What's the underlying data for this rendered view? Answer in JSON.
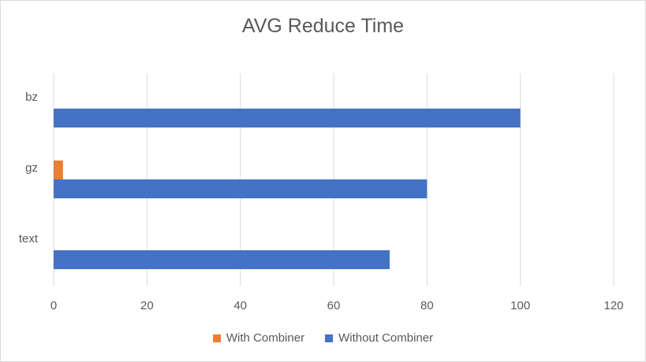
{
  "chart_data": {
    "type": "bar",
    "orientation": "horizontal",
    "title": "AVG Reduce Time",
    "categories": [
      "bz",
      "gz",
      "text"
    ],
    "series": [
      {
        "name": "With Combiner",
        "values": [
          0,
          2,
          0
        ],
        "color": "#ED7D31"
      },
      {
        "name": "Without Combiner",
        "values": [
          100,
          80,
          72
        ],
        "color": "#4472C4"
      }
    ],
    "xlim": [
      0,
      120
    ],
    "x_ticks": [
      0,
      20,
      40,
      60,
      80,
      100,
      120
    ],
    "grid": true,
    "legend_position": "bottom"
  }
}
